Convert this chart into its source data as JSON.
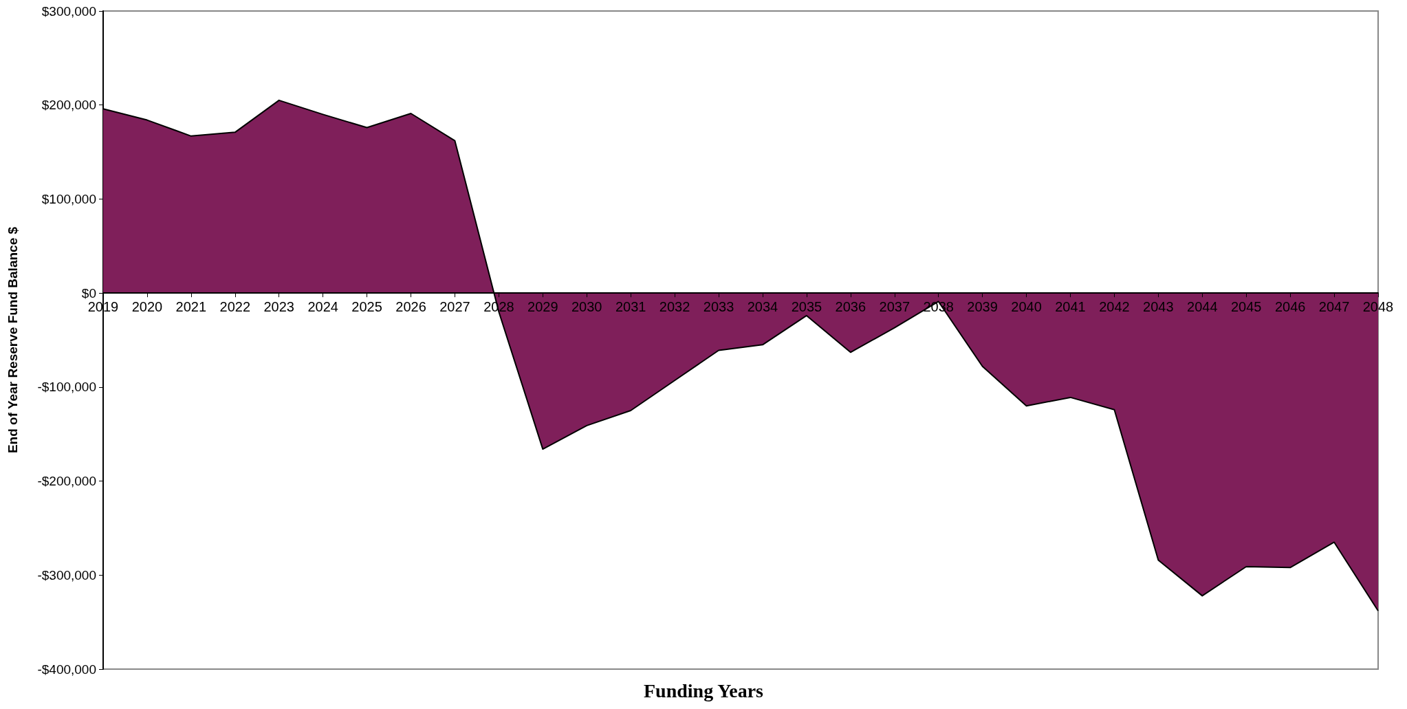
{
  "chart_data": {
    "type": "area",
    "xlabel": "Funding Years",
    "ylabel": "End of Year Reserve Fund Balance $",
    "categories": [
      "2019",
      "2020",
      "2021",
      "2022",
      "2023",
      "2024",
      "2025",
      "2026",
      "2027",
      "2028",
      "2029",
      "2030",
      "2031",
      "2032",
      "2033",
      "2034",
      "2035",
      "2036",
      "2037",
      "2038",
      "2039",
      "2040",
      "2041",
      "2042",
      "2043",
      "2044",
      "2045",
      "2046",
      "2047",
      "2048"
    ],
    "series": [
      {
        "color": "#7f1f5a",
        "values": [
          196000,
          184000,
          167000,
          171000,
          205000,
          190000,
          176000,
          191000,
          162000,
          -20000,
          -166000,
          -141000,
          -125000,
          -93000,
          -61000,
          -55000,
          -24000,
          -63000,
          -37000,
          -9000,
          -78000,
          -120000,
          -111000,
          -124000,
          -284000,
          -322000,
          -291000,
          -292000,
          -265000,
          -338000
        ]
      }
    ],
    "ylim": [
      -400000,
      300000
    ],
    "yticks": [
      {
        "value": -400000,
        "label": "-$400,000"
      },
      {
        "value": -300000,
        "label": "-$300,000"
      },
      {
        "value": -200000,
        "label": "-$200,000"
      },
      {
        "value": -100000,
        "label": "-$100,000"
      },
      {
        "value": 0,
        "label": "$0"
      },
      {
        "value": 100000,
        "label": "$100,000"
      },
      {
        "value": 200000,
        "label": "$200,000"
      },
      {
        "value": 300000,
        "label": "$300,000"
      }
    ],
    "grid": false,
    "marker": "none",
    "line_style": "solid"
  }
}
